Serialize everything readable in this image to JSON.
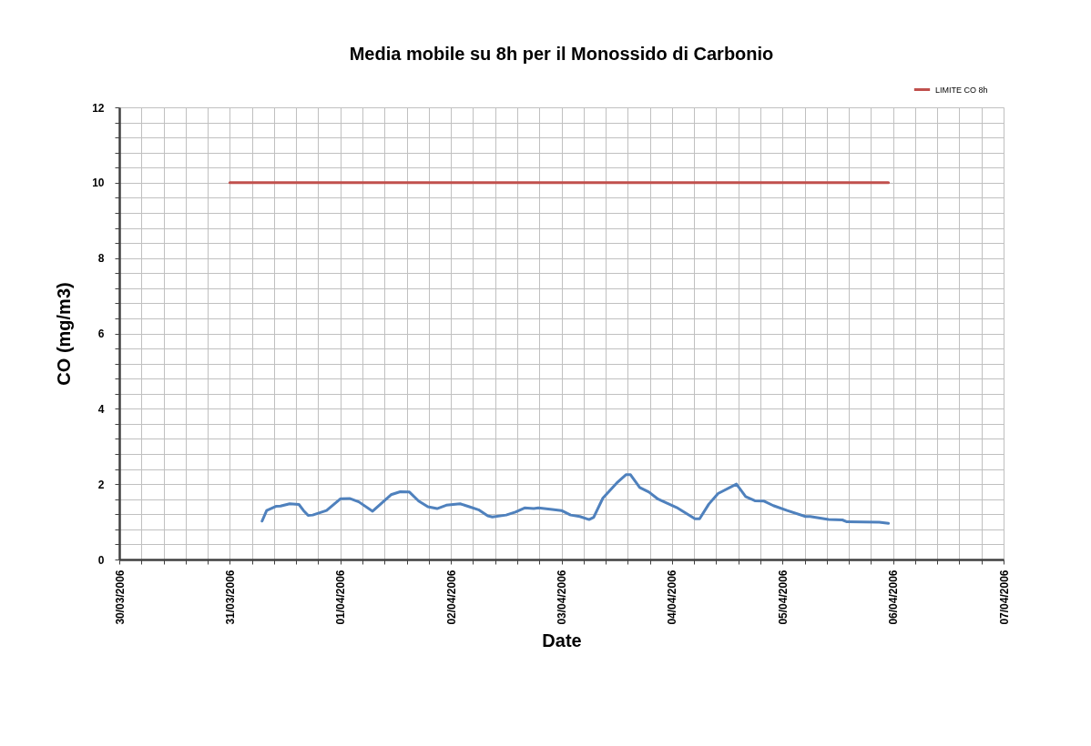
{
  "chart_data": {
    "type": "line",
    "title": "Media mobile su 8h per il Monossido di Carbonio",
    "xlabel": "Date",
    "ylabel": "CO (mg/m3)",
    "series": [
      {
        "color": "#4f81bd",
        "x": [
          "2006-03-31T07:00",
          "2006-03-31T08:00",
          "2006-03-31T10:00",
          "2006-03-31T11:00",
          "2006-03-31T13:00",
          "2006-03-31T15:00",
          "2006-03-31T16:00",
          "2006-03-31T17:00",
          "2006-03-31T18:00",
          "2006-03-31T21:00",
          "2006-04-01T00:00",
          "2006-04-01T02:00",
          "2006-04-01T04:00",
          "2006-04-01T07:00",
          "2006-04-01T09:00",
          "2006-04-01T11:00",
          "2006-04-01T13:00",
          "2006-04-01T15:00",
          "2006-04-01T17:00",
          "2006-04-01T19:00",
          "2006-04-01T21:00",
          "2006-04-01T23:00",
          "2006-04-02T02:00",
          "2006-04-02T04:00",
          "2006-04-02T06:00",
          "2006-04-02T08:00",
          "2006-04-02T09:00",
          "2006-04-02T12:00",
          "2006-04-02T14:00",
          "2006-04-02T16:00",
          "2006-04-02T18:00",
          "2006-04-02T19:00",
          "2006-04-02T22:00",
          "2006-04-03T00:00",
          "2006-04-03T02:00",
          "2006-04-03T04:00",
          "2006-04-03T06:00",
          "2006-04-03T07:00",
          "2006-04-03T09:00",
          "2006-04-03T12:00",
          "2006-04-03T14:00",
          "2006-04-03T15:00",
          "2006-04-03T17:00",
          "2006-04-03T19:00",
          "2006-04-03T21:00",
          "2006-04-04T01:00",
          "2006-04-04T05:00",
          "2006-04-04T06:00",
          "2006-04-04T08:00",
          "2006-04-04T10:00",
          "2006-04-04T14:00",
          "2006-04-04T16:00",
          "2006-04-04T18:00",
          "2006-04-04T20:00",
          "2006-04-04T22:00",
          "2006-04-05T01:00",
          "2006-04-05T05:00",
          "2006-04-05T06:00",
          "2006-04-05T10:00",
          "2006-04-05T13:00",
          "2006-04-05T14:00",
          "2006-04-05T21:00",
          "2006-04-05T23:00"
        ],
        "values": [
          1.02,
          1.3,
          1.41,
          1.42,
          1.48,
          1.46,
          1.3,
          1.17,
          1.18,
          1.3,
          1.61,
          1.62,
          1.53,
          1.28,
          1.5,
          1.72,
          1.8,
          1.79,
          1.55,
          1.4,
          1.35,
          1.44,
          1.48,
          1.4,
          1.32,
          1.16,
          1.13,
          1.18,
          1.26,
          1.37,
          1.35,
          1.37,
          1.33,
          1.3,
          1.18,
          1.14,
          1.06,
          1.12,
          1.63,
          2.03,
          2.25,
          2.25,
          1.91,
          1.79,
          1.6,
          1.38,
          1.08,
          1.08,
          1.47,
          1.75,
          2.0,
          1.67,
          1.56,
          1.55,
          1.43,
          1.3,
          1.14,
          1.14,
          1.06,
          1.05,
          1.0,
          0.99,
          0.96
        ]
      },
      {
        "name": "LIMITE CO 8h",
        "color": "#c0504d",
        "x": [
          "2006-03-31T00:00",
          "2006-04-05T23:00"
        ],
        "values": [
          10,
          10
        ]
      }
    ],
    "xlim": [
      "2006-03-30T00:00",
      "2006-04-07T00:00"
    ],
    "xticks": [
      {
        "value": "2006-03-30T00:00",
        "label": "30/03/2006"
      },
      {
        "value": "2006-03-30T04:48",
        "label": null
      },
      {
        "value": "2006-03-30T09:36",
        "label": null
      },
      {
        "value": "2006-03-30T14:24",
        "label": null
      },
      {
        "value": "2006-03-30T19:12",
        "label": null
      },
      {
        "value": "2006-03-31T00:00",
        "label": "31/03/2006"
      },
      {
        "value": "2006-03-31T04:48",
        "label": null
      },
      {
        "value": "2006-03-31T09:36",
        "label": null
      },
      {
        "value": "2006-03-31T14:24",
        "label": null
      },
      {
        "value": "2006-03-31T19:12",
        "label": null
      },
      {
        "value": "2006-04-01T00:00",
        "label": "01/04/2006"
      },
      {
        "value": "2006-04-01T04:48",
        "label": null
      },
      {
        "value": "2006-04-01T09:36",
        "label": null
      },
      {
        "value": "2006-04-01T14:24",
        "label": null
      },
      {
        "value": "2006-04-01T19:12",
        "label": null
      },
      {
        "value": "2006-04-02T00:00",
        "label": "02/04/2006"
      },
      {
        "value": "2006-04-02T04:48",
        "label": null
      },
      {
        "value": "2006-04-02T09:36",
        "label": null
      },
      {
        "value": "2006-04-02T14:24",
        "label": null
      },
      {
        "value": "2006-04-02T19:12",
        "label": null
      },
      {
        "value": "2006-04-03T00:00",
        "label": "03/04/2006"
      },
      {
        "value": "2006-04-03T04:48",
        "label": null
      },
      {
        "value": "2006-04-03T09:36",
        "label": null
      },
      {
        "value": "2006-04-03T14:24",
        "label": null
      },
      {
        "value": "2006-04-03T19:12",
        "label": null
      },
      {
        "value": "2006-04-04T00:00",
        "label": "04/04/2006"
      },
      {
        "value": "2006-04-04T04:48",
        "label": null
      },
      {
        "value": "2006-04-04T09:36",
        "label": null
      },
      {
        "value": "2006-04-04T14:24",
        "label": null
      },
      {
        "value": "2006-04-04T19:12",
        "label": null
      },
      {
        "value": "2006-04-05T00:00",
        "label": "05/04/2006"
      },
      {
        "value": "2006-04-05T04:48",
        "label": null
      },
      {
        "value": "2006-04-05T09:36",
        "label": null
      },
      {
        "value": "2006-04-05T14:24",
        "label": null
      },
      {
        "value": "2006-04-05T19:12",
        "label": null
      },
      {
        "value": "2006-04-06T00:00",
        "label": "06/04/2006"
      },
      {
        "value": "2006-04-06T04:48",
        "label": null
      },
      {
        "value": "2006-04-06T09:36",
        "label": null
      },
      {
        "value": "2006-04-06T14:24",
        "label": null
      },
      {
        "value": "2006-04-06T19:12",
        "label": null
      },
      {
        "value": "2006-04-07T00:00",
        "label": "07/04/2006"
      }
    ],
    "ylim": [
      0,
      12
    ],
    "yticks": [
      0,
      {
        "value": 0.4,
        "label": null
      },
      {
        "value": 0.8,
        "label": null
      },
      {
        "value": 1.2,
        "label": null
      },
      {
        "value": 1.6,
        "label": null
      },
      2,
      {
        "value": 2.4,
        "label": null
      },
      {
        "value": 2.8,
        "label": null
      },
      {
        "value": 3.2,
        "label": null
      },
      {
        "value": 3.6,
        "label": null
      },
      4,
      {
        "value": 4.4,
        "label": null
      },
      {
        "value": 4.8,
        "label": null
      },
      {
        "value": 5.2,
        "label": null
      },
      {
        "value": 5.6,
        "label": null
      },
      6,
      {
        "value": 6.4,
        "label": null
      },
      {
        "value": 6.8,
        "label": null
      },
      {
        "value": 7.2,
        "label": null
      },
      {
        "value": 7.6,
        "label": null
      },
      8,
      {
        "value": 8.4,
        "label": null
      },
      {
        "value": 8.8,
        "label": null
      },
      {
        "value": 9.2,
        "label": null
      },
      {
        "value": 9.6,
        "label": null
      },
      10,
      {
        "value": 10.4,
        "label": null
      },
      {
        "value": 10.8,
        "label": null
      },
      {
        "value": 11.2,
        "label": null
      },
      {
        "value": 11.6,
        "label": null
      },
      12
    ],
    "grid": true,
    "legend": "top right",
    "marker": "none",
    "line_style": "solid"
  }
}
